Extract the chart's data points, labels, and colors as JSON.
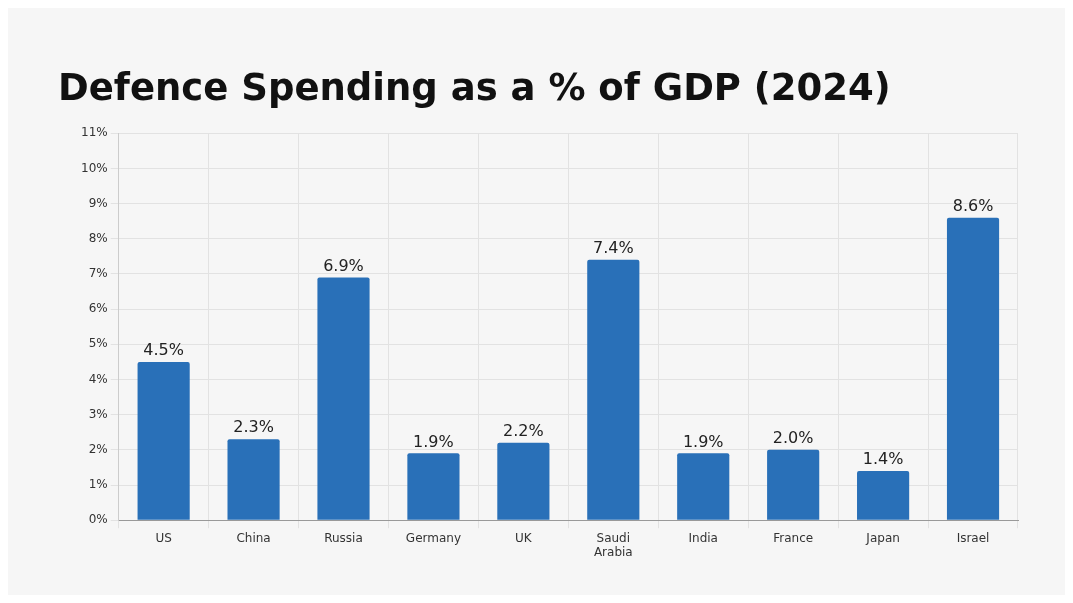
{
  "chart_data": {
    "type": "bar",
    "title": "Defence Spending as a % of GDP (2024)",
    "categories": [
      "US",
      "China",
      "Russia",
      "Germany",
      "UK",
      "Saudi Arabia",
      "India",
      "France",
      "Japan",
      "Israel"
    ],
    "values": [
      4.5,
      2.3,
      6.9,
      1.9,
      2.2,
      7.4,
      1.9,
      2.0,
      1.4,
      8.6
    ],
    "value_labels": [
      "4.5%",
      "2.3%",
      "6.9%",
      "1.9%",
      "2.2%",
      "7.4%",
      "1.9%",
      "2.0%",
      "1.4%",
      "8.6%"
    ],
    "color": "#2970b8",
    "ylim": [
      0,
      11
    ],
    "yticks": [
      {
        "value": 0,
        "label": "0%"
      },
      {
        "value": 1,
        "label": "1%"
      },
      {
        "value": 2,
        "label": "2%"
      },
      {
        "value": 3,
        "label": "3%"
      },
      {
        "value": 4,
        "label": "4%"
      },
      {
        "value": 5,
        "label": "5%"
      },
      {
        "value": 6,
        "label": "6%"
      },
      {
        "value": 7,
        "label": "7%"
      },
      {
        "value": 8,
        "label": "8%"
      },
      {
        "value": 9,
        "label": "9%"
      },
      {
        "value": 10,
        "label": "10%"
      },
      {
        "value": 11,
        "label": "11%"
      }
    ],
    "grid": true,
    "legend": false
  }
}
